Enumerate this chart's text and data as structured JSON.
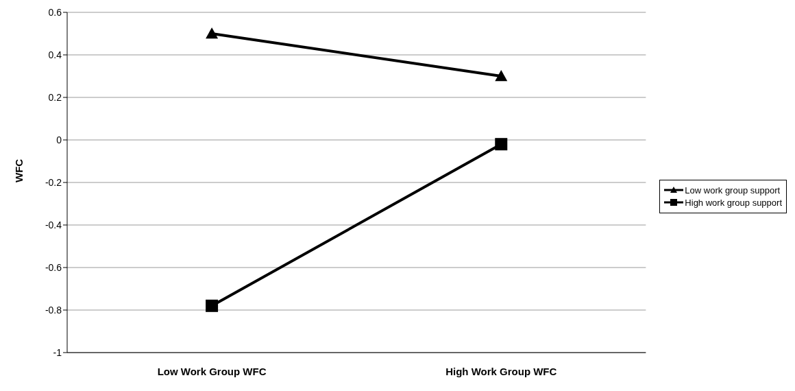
{
  "chart_data": {
    "type": "line",
    "ylabel": "WFC",
    "categories": [
      "Low Work Group WFC",
      "High Work Group WFC"
    ],
    "series": [
      {
        "name": "Low work group support",
        "color": "#000000",
        "marker": "triangle",
        "values": [
          0.5,
          0.3
        ]
      },
      {
        "name": "High work group support",
        "color": "#000000",
        "marker": "square",
        "values": [
          -0.78,
          -0.02
        ]
      }
    ],
    "ylim": [
      -1,
      0.6
    ],
    "yticks": [
      -1,
      -0.8,
      -0.6,
      -0.4,
      -0.2,
      0,
      0.2,
      0.4,
      0.6
    ],
    "grid": "y",
    "legend": "right"
  }
}
